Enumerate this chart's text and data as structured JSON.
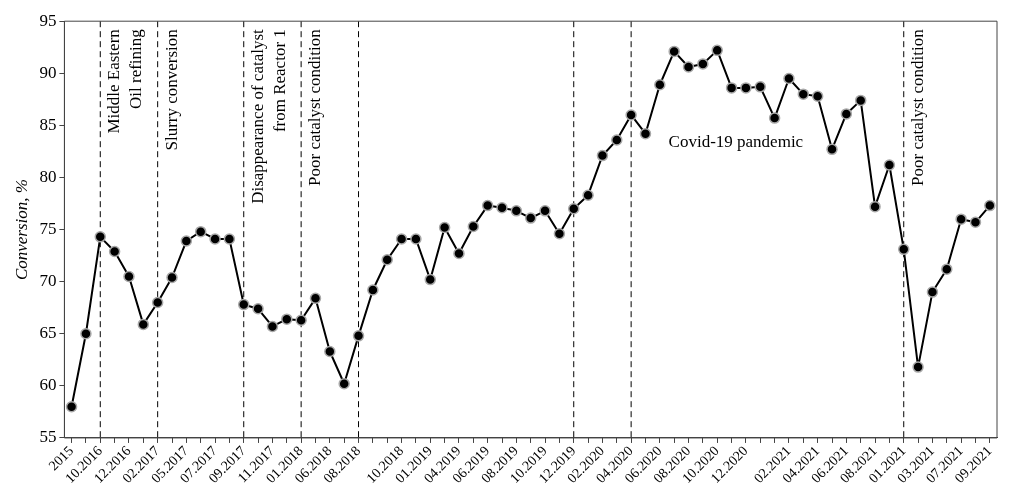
{
  "chart_data": {
    "type": "line",
    "ylabel": "Conversion, %",
    "categories": [
      "2015",
      null,
      "10.2016",
      null,
      "12.2016",
      null,
      "02.2017",
      null,
      "05.2017",
      null,
      "07.2017",
      null,
      "09.2017",
      null,
      "11.2017",
      null,
      "01.2018",
      null,
      "06.2018",
      null,
      "08.2018",
      null,
      null,
      "10.2018",
      null,
      "01.2019",
      null,
      "04.2019",
      null,
      "06.2019",
      null,
      "08.2019",
      null,
      "10.2019",
      null,
      "12.2019",
      null,
      "02.2020",
      null,
      "04.2020",
      null,
      "06.2020",
      null,
      "08.2020",
      null,
      "10.2020",
      null,
      "12.2020",
      null,
      null,
      "02.2021",
      null,
      "04.2021",
      null,
      "06.2021",
      null,
      "08.2021",
      null,
      "01.2021",
      null,
      "03.2021",
      null,
      "07.2021",
      null,
      "09.2021"
    ],
    "series": [
      {
        "color": "#000000",
        "values": [
          58,
          65,
          74.3,
          72.9,
          70.5,
          65.9,
          68,
          70.4,
          73.9,
          74.8,
          74.1,
          74.1,
          67.8,
          67.4,
          65.7,
          66.4,
          66.3,
          68.4,
          63.3,
          60.2,
          64.8,
          69.2,
          72.1,
          74.1,
          74.1,
          70.2,
          75.2,
          72.7,
          75.3,
          77.3,
          77.1,
          76.8,
          76.1,
          76.8,
          74.6,
          77,
          78.3,
          82.1,
          83.6,
          86,
          84.2,
          88.9,
          92.1,
          90.6,
          90.9,
          92.2,
          88.6,
          88.6,
          88.7,
          85.7,
          89.5,
          88,
          87.8,
          82.7,
          86.1,
          87.4,
          77.2,
          81.2,
          73.1,
          61.8,
          69,
          71.2,
          76,
          75.7,
          77.3
        ]
      }
    ],
    "ylim": [
      55,
      95
    ],
    "yticks": [
      55,
      60,
      65,
      70,
      75,
      80,
      85,
      90,
      95
    ],
    "grid": false,
    "legend": false,
    "marker": "circle",
    "line_style": "solid",
    "ref_lines": [
      {
        "axis": "x",
        "value": "10.2016",
        "label": "Middle Eastern\nOil refining",
        "line_style": "dashed"
      },
      {
        "axis": "x",
        "value": "02.2017",
        "label": "Slurry conversion",
        "line_style": "dashed"
      },
      {
        "axis": "x",
        "value": "09.2017",
        "label": "Disappearance of catalyst\nfrom Reactor 1",
        "line_style": "dashed"
      },
      {
        "axis": "x",
        "value": "01.2018",
        "label": "Poor catalyst condition",
        "line_style": "dashed"
      },
      {
        "axis": "x",
        "value": "08.2018",
        "line_style": "dashed"
      },
      {
        "axis": "x",
        "value": "12.2019",
        "line_style": "dashed"
      },
      {
        "axis": "x",
        "value": "04.2020",
        "line_style": "dashed"
      },
      {
        "axis": "x",
        "value": "01.2021",
        "label": "Poor catalyst condition",
        "line_style": "dashed"
      }
    ],
    "annotations": [
      "Covid-19 pandemic"
    ]
  }
}
